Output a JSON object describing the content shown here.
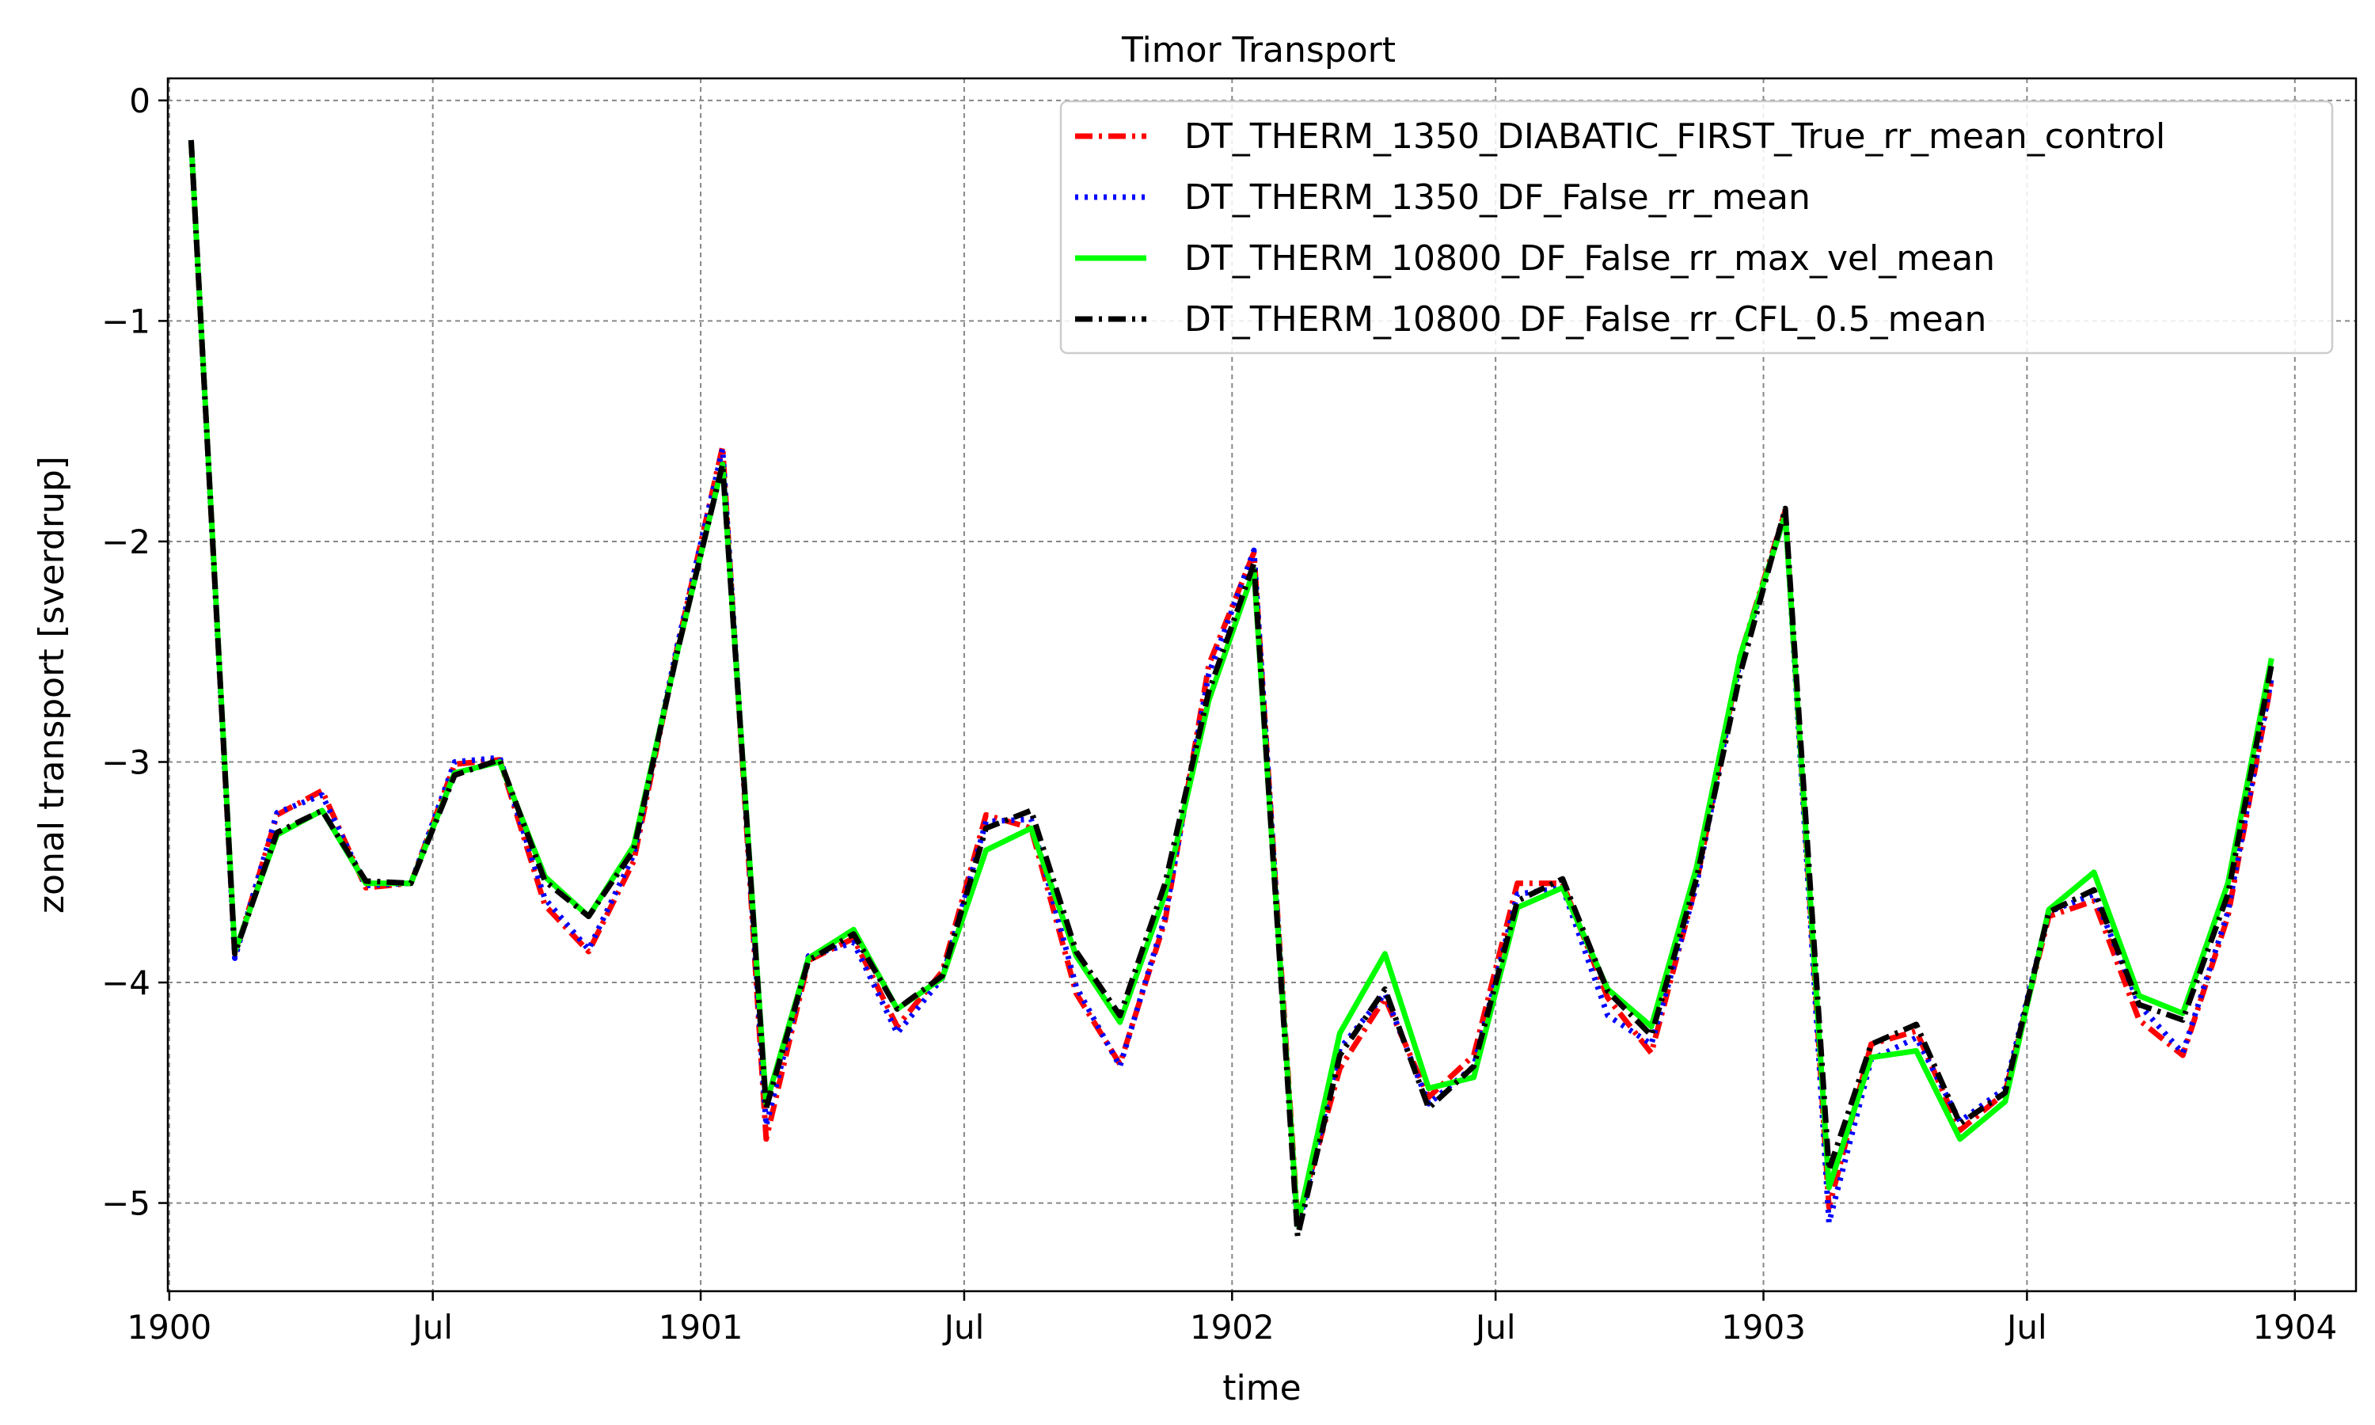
{
  "chart_data": {
    "type": "line",
    "title": "Timor Transport",
    "xlabel": "time",
    "ylabel": "zonal transport [sverdrup]",
    "xlim": [
      "1899-12-31",
      "1904-02-12"
    ],
    "ylim": [
      -5.4,
      0.1
    ],
    "x_ticks": [
      {
        "date": "1900-01-01",
        "label": "1900"
      },
      {
        "date": "1900-07-01",
        "label": "Jul"
      },
      {
        "date": "1901-01-01",
        "label": "1901"
      },
      {
        "date": "1901-07-01",
        "label": "Jul"
      },
      {
        "date": "1902-01-01",
        "label": "1902"
      },
      {
        "date": "1902-07-01",
        "label": "Jul"
      },
      {
        "date": "1903-01-01",
        "label": "1903"
      },
      {
        "date": "1903-07-01",
        "label": "Jul"
      },
      {
        "date": "1904-01-01",
        "label": "1904"
      }
    ],
    "y_ticks": [
      {
        "value": 0,
        "label": "0"
      },
      {
        "value": -1,
        "label": "−1"
      },
      {
        "value": -2,
        "label": "−2"
      },
      {
        "value": -3,
        "label": "−3"
      },
      {
        "value": -4,
        "label": "−4"
      },
      {
        "value": -5,
        "label": "−5"
      }
    ],
    "grid": true,
    "legend_position": "top-right",
    "x": [
      "1900-01-16",
      "1900-02-15",
      "1900-03-16",
      "1900-04-16",
      "1900-05-16",
      "1900-06-16",
      "1900-07-16",
      "1900-08-16",
      "1900-09-16",
      "1900-10-16",
      "1900-11-16",
      "1900-12-16",
      "1901-01-16",
      "1901-02-15",
      "1901-03-16",
      "1901-04-16",
      "1901-05-16",
      "1901-06-16",
      "1901-07-16",
      "1901-08-16",
      "1901-09-16",
      "1901-10-16",
      "1901-11-16",
      "1901-12-16",
      "1902-01-16",
      "1902-02-15",
      "1902-03-16",
      "1902-04-16",
      "1902-05-16",
      "1902-06-16",
      "1902-07-16",
      "1902-08-16",
      "1902-09-16",
      "1902-10-16",
      "1902-11-16",
      "1902-12-16",
      "1903-01-16",
      "1903-02-15",
      "1903-03-16",
      "1903-04-16",
      "1903-05-16",
      "1903-06-16",
      "1903-07-16",
      "1903-08-16",
      "1903-09-16",
      "1903-10-16",
      "1903-11-16",
      "1903-12-16"
    ],
    "series": [
      {
        "name": "DT_THERM_1350_DIABATIC_FIRST_True_rr_mean_control",
        "color": "#ff0000",
        "dash": "22,8,4,8",
        "values": [
          -0.18,
          -3.88,
          -3.24,
          -3.13,
          -3.57,
          -3.55,
          -3.01,
          -2.99,
          -3.65,
          -3.86,
          -3.45,
          -2.48,
          -1.57,
          -4.71,
          -3.9,
          -3.8,
          -4.2,
          -3.95,
          -3.24,
          -3.3,
          -4.05,
          -4.37,
          -3.72,
          -2.56,
          -2.05,
          -5.08,
          -4.39,
          -4.07,
          -4.52,
          -4.33,
          -3.55,
          -3.55,
          -4.07,
          -4.32,
          -3.55,
          -2.52,
          -1.86,
          -5.02,
          -4.28,
          -4.22,
          -4.67,
          -4.5,
          -3.7,
          -3.63,
          -4.17,
          -4.33,
          -3.7,
          -2.63
        ]
      },
      {
        "name": "DT_THERM_1350_DF_False_rr_mean",
        "color": "#0000ff",
        "dash": "4,8",
        "values": [
          -0.18,
          -3.89,
          -3.23,
          -3.15,
          -3.56,
          -3.55,
          -3.0,
          -2.98,
          -3.62,
          -3.85,
          -3.42,
          -2.47,
          -1.58,
          -4.65,
          -3.88,
          -3.82,
          -4.23,
          -3.98,
          -3.27,
          -3.26,
          -4.02,
          -4.38,
          -3.7,
          -2.6,
          -2.04,
          -5.12,
          -4.3,
          -4.05,
          -4.55,
          -4.38,
          -3.6,
          -3.57,
          -4.15,
          -4.28,
          -3.56,
          -2.54,
          -1.87,
          -5.09,
          -4.35,
          -4.25,
          -4.63,
          -4.48,
          -3.68,
          -3.6,
          -4.1,
          -4.32,
          -3.68,
          -2.62
        ]
      },
      {
        "name": "DT_THERM_10800_DF_False_rr_max_vel_mean",
        "color": "#00ff00",
        "dash": "",
        "values": [
          -0.18,
          -3.86,
          -3.33,
          -3.22,
          -3.55,
          -3.55,
          -3.05,
          -3.0,
          -3.52,
          -3.7,
          -3.38,
          -2.5,
          -1.65,
          -4.55,
          -3.89,
          -3.76,
          -4.12,
          -3.98,
          -3.4,
          -3.3,
          -3.88,
          -4.18,
          -3.6,
          -2.72,
          -2.13,
          -5.1,
          -4.23,
          -3.87,
          -4.48,
          -4.43,
          -3.66,
          -3.57,
          -4.03,
          -4.2,
          -3.48,
          -2.52,
          -1.88,
          -4.93,
          -4.34,
          -4.31,
          -4.71,
          -4.54,
          -3.67,
          -3.5,
          -4.06,
          -4.14,
          -3.55,
          -2.53
        ]
      },
      {
        "name": "DT_THERM_10800_DF_False_rr_CFL_0.5_mean",
        "color": "#000000",
        "dash": "22,8,4,8",
        "values": [
          -0.18,
          -3.87,
          -3.32,
          -3.22,
          -3.54,
          -3.55,
          -3.06,
          -2.99,
          -3.54,
          -3.7,
          -3.4,
          -2.5,
          -1.65,
          -4.57,
          -3.9,
          -3.78,
          -4.12,
          -3.97,
          -3.3,
          -3.22,
          -3.86,
          -4.15,
          -3.55,
          -2.68,
          -2.1,
          -5.15,
          -4.33,
          -4.03,
          -4.57,
          -4.38,
          -3.63,
          -3.53,
          -4.04,
          -4.24,
          -3.53,
          -2.6,
          -1.85,
          -4.85,
          -4.28,
          -4.19,
          -4.64,
          -4.5,
          -3.68,
          -3.58,
          -4.1,
          -4.17,
          -3.6,
          -2.56
        ]
      }
    ]
  }
}
